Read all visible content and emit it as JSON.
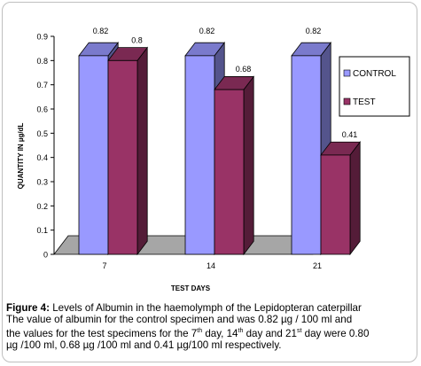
{
  "chart_data": {
    "type": "bar",
    "categories": [
      "7",
      "14",
      "21"
    ],
    "series": [
      {
        "name": "CONTROL",
        "values": [
          0.82,
          0.82,
          0.82
        ],
        "color": "#9999ff"
      },
      {
        "name": "TEST",
        "values": [
          0.8,
          0.68,
          0.41
        ],
        "color": "#993366"
      }
    ],
    "data_labels": [
      [
        "0.82",
        "0.82",
        "0.82"
      ],
      [
        "0.8",
        "0.68",
        "0.41"
      ]
    ],
    "xlabel": "TEST DAYS",
    "ylabel": "QUANTITY IN µg/dL",
    "ylim": [
      0,
      0.9
    ],
    "yticks": [
      "0",
      "0.1",
      "0.2",
      "0.3",
      "0.4",
      "0.5",
      "0.6",
      "0.7",
      "0.8",
      "0.9"
    ],
    "grid": false,
    "legend_position": "right",
    "style": "3d-bar",
    "floor_color": "#a6a6a6"
  },
  "caption": {
    "label": "Figure 4:",
    "line1": " Levels of Albumin in the haemolymph of the Lepidopteran caterpillar",
    "line2": "The value of albumin for the control specimen and was 0.82 µg / 100 ml and",
    "line3_a": "the values for the test specimens for the 7",
    "sup_th1": "th",
    "line3_b": " day, 14",
    "sup_th2": "th",
    "line3_c": " day and 21",
    "sup_st": "st",
    "line3_d": " day were 0.80",
    "line4": "µg /100 ml, 0.68 µg /100 ml and 0.41 µg/100 ml respectively."
  }
}
